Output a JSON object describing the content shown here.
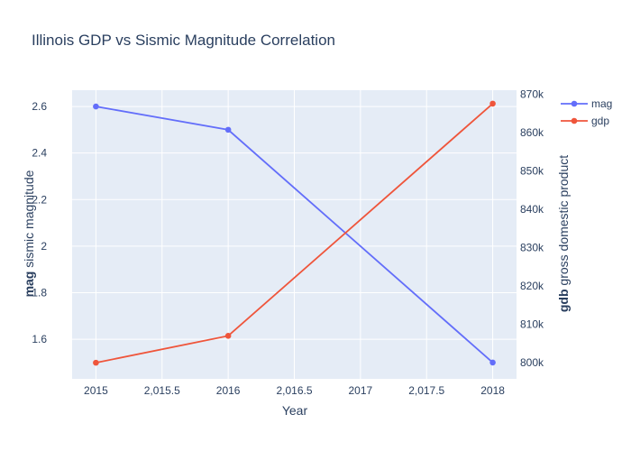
{
  "chart_data": {
    "type": "line",
    "title": "Illinois GDP vs Sismic Magnitude Correlation",
    "x": [
      2015,
      2016,
      2018
    ],
    "xlabel": "Year",
    "xlim": [
      2014.82,
      2018.18
    ],
    "xticks": [
      2015,
      2015.5,
      2016,
      2016.5,
      2017,
      2017.5,
      2018
    ],
    "xtick_labels": [
      "2015",
      "2,015.5",
      "2016",
      "2,016.5",
      "2017",
      "2,017.5",
      "2018"
    ],
    "y_left": {
      "label_bold": "mag",
      "label_rest": " sismic magnitude",
      "ylim": [
        1.43,
        2.67
      ],
      "ticks": [
        1.6,
        1.8,
        2.0,
        2.2,
        2.4,
        2.6
      ],
      "tick_labels": [
        "1.6",
        "1.8",
        "2",
        "2.2",
        "2.4",
        "2.6"
      ]
    },
    "y_right": {
      "label_bold": "gdb",
      "label_rest": " gross domestic product",
      "ylim": [
        795800,
        871000
      ],
      "ticks": [
        800000,
        810000,
        820000,
        830000,
        840000,
        850000,
        860000,
        870000
      ],
      "tick_labels": [
        "800k",
        "810k",
        "820k",
        "830k",
        "840k",
        "850k",
        "860k",
        "870k"
      ]
    },
    "series": [
      {
        "name": "mag",
        "axis": "left",
        "color": "#636efa",
        "values": [
          2.6,
          2.5,
          1.5
        ]
      },
      {
        "name": "gdp",
        "axis": "right",
        "color": "#ef553b",
        "values": [
          800000,
          807000,
          867500
        ]
      }
    ],
    "grid": true,
    "legend_position": "top-right",
    "plot_background": "#e5ecf6"
  }
}
